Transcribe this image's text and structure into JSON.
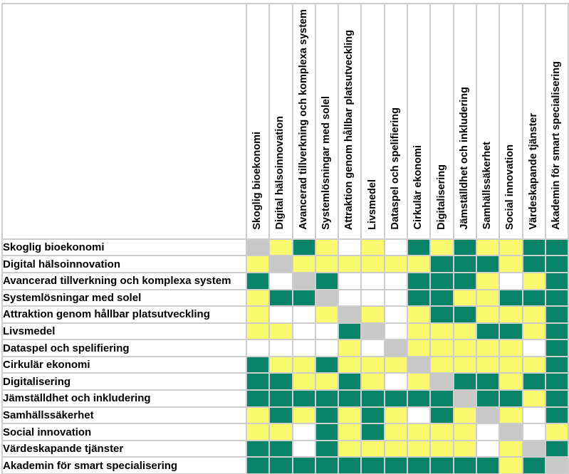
{
  "areas": [
    "Skoglig bioekonomi",
    "Digital hälsoinnovation",
    "Avancerad tillverkning och komplexa system",
    "Systemlösningar med solel",
    "Attraktion genom hållbar platsutveckling",
    "Livsmedel",
    "Dataspel och spelifiering",
    "Cirkulär ekonomi",
    "Digitalisering",
    "Jämställdhet och inkludering",
    "Samhällssäkerhet",
    "Social innovation",
    "Värdeskapande tjänster",
    "Akademin för smart specialisering"
  ],
  "palette": {
    "G": "#078467",
    "Y": "#fafa6e",
    "W": "#ffffff",
    "D": "#c8c8c6"
  },
  "palette_names": {
    "G": "green",
    "Y": "yellow",
    "W": "white",
    "D": "diagonal-gray"
  },
  "chart_data": {
    "type": "heatmap",
    "title": "",
    "x_categories": [
      "Skoglig bioekonomi",
      "Digital hälsoinnovation",
      "Avancerad tillverkning och komplexa system",
      "Systemlösningar med solel",
      "Attraktion genom hållbar platsutveckling",
      "Livsmedel",
      "Dataspel och spelifiering",
      "Cirkulär ekonomi",
      "Digitalisering",
      "Jämställdhet och inkludering",
      "Samhällssäkerhet",
      "Social innovation",
      "Värdeskapande tjänster",
      "Akademin för smart specialisering"
    ],
    "y_categories": [
      "Skoglig bioekonomi",
      "Digital hälsoinnovation",
      "Avancerad tillverkning och komplexa system",
      "Systemlösningar med solel",
      "Attraktion genom hållbar platsutveckling",
      "Livsmedel",
      "Dataspel och spelifiering",
      "Cirkulär ekonomi",
      "Digitalisering",
      "Jämställdhet och inkludering",
      "Samhällssäkerhet",
      "Social innovation",
      "Värdeskapande tjänster",
      "Akademin för smart specialisering"
    ],
    "cell_colors_legend": {
      "G": "#078467",
      "Y": "#fafa6e",
      "W": "#ffffff",
      "D": "#c8c8c6"
    },
    "values": [
      "DYGYWYWGYGYYGG",
      "YDYYYYYYGGGYGG",
      "GWDGWWWGGGYWYG",
      "YGGDWWWGGYYGGG",
      "YWWYDYWYGGYYYG",
      "YYWWGDWYYYGGYG",
      "WWWWYWDYYYYYWG",
      "GYYGYYYDYYYYYG",
      "GGYYGYWYDGGYGG",
      "GGGGGGGGGDGGYG",
      "YGYGYGYWGYDYWG",
      "YYWGYGYYYYWDWY",
      "GGWGYYYYYYWYDG",
      "GGGGGGGGGGGYGD"
    ],
    "layout": {
      "column_headers_rotated": true,
      "diagonal": "gray",
      "grid": true,
      "legend_position": "none"
    }
  }
}
